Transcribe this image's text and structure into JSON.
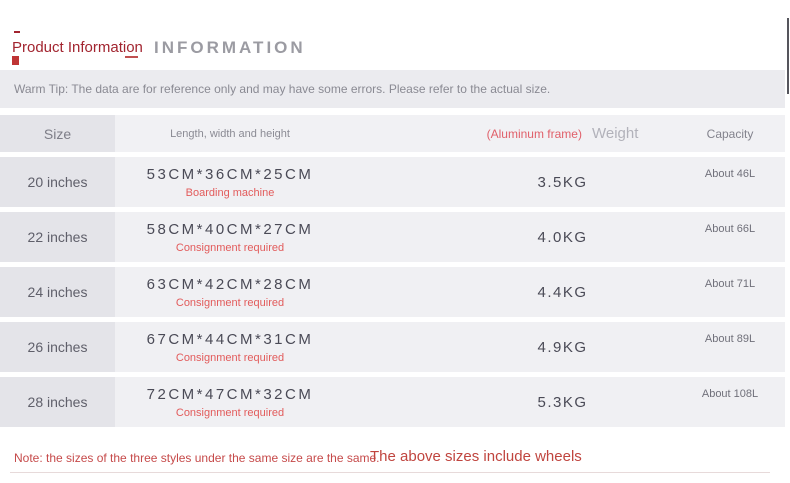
{
  "page": {
    "title": "Product Information",
    "watermark": "INFORMATION"
  },
  "warm_tip": "Warm Tip: The data are for reference only and may have some errors. Please refer to the actual size.",
  "table": {
    "header": {
      "size": "Size",
      "dimensions": "Length, width and height",
      "weight_frame": "(Aluminum frame)",
      "weight": "Weight",
      "capacity": "Capacity"
    },
    "rows": [
      {
        "size": "20 inches",
        "dimensions": "53CM*36CM*25CM",
        "note": "Boarding machine",
        "weight": "3.5KG",
        "capacity": "About 46L"
      },
      {
        "size": "22 inches",
        "dimensions": "58CM*40CM*27CM",
        "note": "Consignment required",
        "weight": "4.0KG",
        "capacity": "About 66L"
      },
      {
        "size": "24 inches",
        "dimensions": "63CM*42CM*28CM",
        "note": "Consignment required",
        "weight": "4.4KG",
        "capacity": "About 71L"
      },
      {
        "size": "26 inches",
        "dimensions": "67CM*44CM*31CM",
        "note": "Consignment required",
        "weight": "4.9KG",
        "capacity": "About 89L"
      },
      {
        "size": "28 inches",
        "dimensions": "72CM*47CM*32CM",
        "note": "Consignment required",
        "weight": "5.3KG",
        "capacity": "About 108L"
      }
    ]
  },
  "footer": {
    "note": "Note: the sizes of the three styles under the same size are the same.",
    "highlight": "The above sizes include wheels"
  },
  "colors": {
    "title_red": "#a2242f",
    "sub_note_red": "#e25b5b",
    "aluminum_red": "#e0606a",
    "footer_note_red": "#c64a4a",
    "footer_highlight_red": "#c0453f",
    "watermark_gray": "#9b9ba2",
    "tip_bg": "#ebebef",
    "row_bg": "#f0f0f3",
    "header_row_bg": "#f1f1f4",
    "size_cell_bg": "#e4e4e9",
    "value_text": "#4a4a56"
  }
}
